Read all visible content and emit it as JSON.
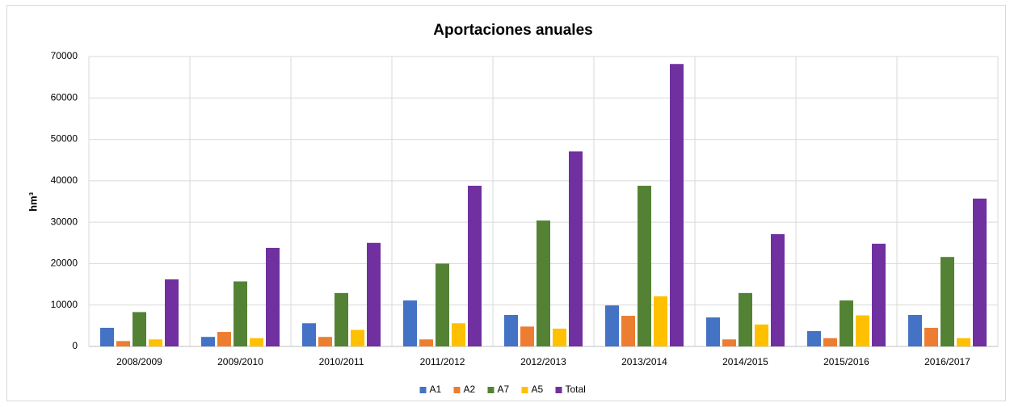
{
  "chart_data": {
    "type": "bar",
    "title": "Aportaciones anuales",
    "y_label": "hm³",
    "categories": [
      "2008/2009",
      "2009/2010",
      "2010/2011",
      "2011/2012",
      "2012/2013",
      "2013/2014",
      "2014/2015",
      "2015/2016",
      "2016/2017"
    ],
    "series": [
      {
        "name": "A1",
        "color": "#4472c4",
        "values": [
          4500,
          2300,
          5600,
          11100,
          7600,
          9900,
          7000,
          3700,
          7600
        ]
      },
      {
        "name": "A2",
        "color": "#ed7d31",
        "values": [
          1300,
          3500,
          2300,
          1700,
          4800,
          7400,
          1700,
          2000,
          4500
        ]
      },
      {
        "name": "A7",
        "color": "#548235",
        "values": [
          8300,
          15700,
          12900,
          20000,
          30400,
          38800,
          12900,
          11100,
          21600
        ]
      },
      {
        "name": "A5",
        "color": "#ffc000",
        "values": [
          1700,
          2000,
          4000,
          5600,
          4300,
          12100,
          5300,
          7500,
          2000
        ]
      },
      {
        "name": "Total",
        "color": "#7030a0",
        "values": [
          16200,
          23800,
          25000,
          38800,
          47100,
          68200,
          27100,
          24800,
          35700
        ]
      }
    ],
    "ylim": [
      0,
      70000
    ],
    "yticks": [
      0,
      10000,
      20000,
      30000,
      40000,
      50000,
      60000,
      70000
    ],
    "grid": true,
    "legend": "bottom"
  }
}
